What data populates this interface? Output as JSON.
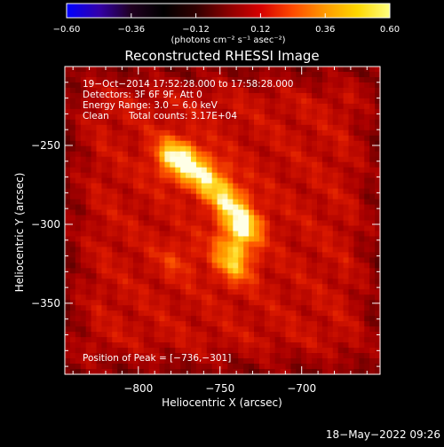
{
  "chart_data": {
    "type": "heatmap",
    "title": "Reconstructed RHESSI Image",
    "xlabel": "Heliocentric X (arcsec)",
    "ylabel": "Heliocentric Y (arcsec)",
    "xlim": [
      -845,
      -652
    ],
    "ylim": [
      -395,
      -200
    ],
    "x_ticks": [
      {
        "value": -800,
        "label": "−800"
      },
      {
        "value": -750,
        "label": "−750"
      },
      {
        "value": -700,
        "label": "−700"
      }
    ],
    "y_ticks": [
      {
        "value": -250,
        "label": "−250"
      },
      {
        "value": -300,
        "label": "−300"
      },
      {
        "value": -350,
        "label": "−350"
      }
    ],
    "colorbar": {
      "range": [
        -0.6,
        0.6
      ],
      "ticks": [
        {
          "value": -0.6,
          "label": "−0.60"
        },
        {
          "value": -0.36,
          "label": "−0.36"
        },
        {
          "value": -0.12,
          "label": "−0.12"
        },
        {
          "value": 0.12,
          "label": "0.12"
        },
        {
          "value": 0.36,
          "label": "0.36"
        },
        {
          "value": 0.6,
          "label": "0.60"
        }
      ],
      "unit_label": "(photons cm⁻² s⁻¹ asec⁻²)",
      "colormap": [
        "#0000ff",
        "#3300aa",
        "#200020",
        "#000000",
        "#300000",
        "#8a0000",
        "#d60000",
        "#ff4a00",
        "#ff9a00",
        "#ffd800",
        "#ffff80"
      ]
    },
    "annotations": {
      "time_range": "19−Oct−2014 17:52:28.000 to 17:58:28.000",
      "detectors": "Detectors: 3F 6F 9F, Att 0",
      "energy": "Energy Range: 3.0 − 6.0 keV",
      "method": "Clean",
      "counts": "Total counts: 3.17E+04",
      "peak": "Position of Peak = [−736,−301]"
    },
    "peak": {
      "x": -736,
      "y": -301
    },
    "background_level": 0.3,
    "emission_sources": [
      {
        "x": -736,
        "y": -301,
        "amplitude": 0.35
      },
      {
        "x": -745,
        "y": -285,
        "amplitude": 0.28
      },
      {
        "x": -757,
        "y": -271,
        "amplitude": 0.26
      },
      {
        "x": -770,
        "y": -262,
        "amplitude": 0.27
      },
      {
        "x": -780,
        "y": -256,
        "amplitude": 0.25
      },
      {
        "x": -743,
        "y": -318,
        "amplitude": 0.2
      },
      {
        "x": -740,
        "y": -328,
        "amplitude": 0.16
      },
      {
        "x": -776,
        "y": -322,
        "amplitude": 0.1
      }
    ]
  },
  "footer": {
    "date": "18−May−2022 09:26"
  }
}
